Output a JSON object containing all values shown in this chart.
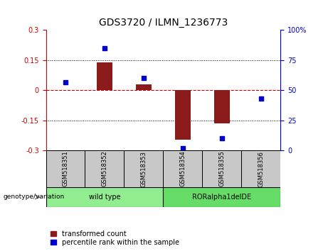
{
  "title": "GDS3720 / ILMN_1236773",
  "categories": [
    "GSM518351",
    "GSM518352",
    "GSM518353",
    "GSM518354",
    "GSM518355",
    "GSM518356"
  ],
  "bar_values": [
    0.0,
    0.14,
    0.03,
    -0.245,
    -0.165,
    0.0
  ],
  "scatter_values": [
    57,
    85,
    60,
    2,
    10,
    43
  ],
  "ylim_left": [
    -0.3,
    0.3
  ],
  "ylim_right": [
    0,
    100
  ],
  "yticks_left": [
    -0.3,
    -0.15,
    0.0,
    0.15,
    0.3
  ],
  "yticks_right": [
    0,
    25,
    50,
    75,
    100
  ],
  "bar_color": "#8B1A1A",
  "scatter_color": "#0000CC",
  "zero_line_color": "#CC0000",
  "dotted_line_color": "#000000",
  "bg_color": "#FFFFFF",
  "sample_box_color": "#C8C8C8",
  "groups": [
    {
      "label": "wild type",
      "start": 0,
      "end": 3,
      "color": "#90EE90"
    },
    {
      "label": "RORalpha1delDE",
      "start": 3,
      "end": 6,
      "color": "#66DD66"
    }
  ],
  "legend_items": [
    {
      "label": "transformed count",
      "color": "#8B1A1A"
    },
    {
      "label": "percentile rank within the sample",
      "color": "#0000CC"
    }
  ],
  "genotype_label": "genotype/variation",
  "bar_width": 0.4,
  "scatter_marker": "s",
  "scatter_size": 20,
  "title_fontsize": 10,
  "tick_fontsize": 7,
  "label_fontsize": 7,
  "legend_fontsize": 7
}
